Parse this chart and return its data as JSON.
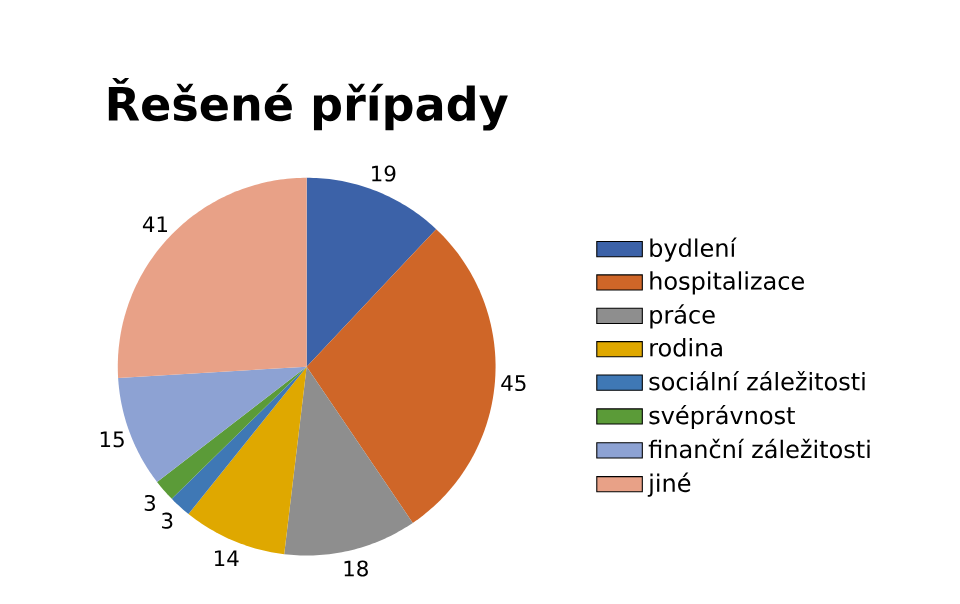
{
  "chart_data": {
    "type": "pie",
    "title": "Řešené případy",
    "categories": [
      "bydlení",
      "hospitalizace",
      "práce",
      "rodina",
      "sociální záležitosti",
      "svéprávnost",
      "finanční záležitosti",
      "jiné"
    ],
    "values": [
      19,
      45,
      18,
      14,
      3,
      3,
      15,
      41
    ],
    "colors": [
      "#3c62a8",
      "#cf6628",
      "#8e8e8e",
      "#dfa800",
      "#3f78b5",
      "#5b9b38",
      "#8da2d3",
      "#e8a187"
    ],
    "data_labels": true,
    "legend": "right"
  }
}
